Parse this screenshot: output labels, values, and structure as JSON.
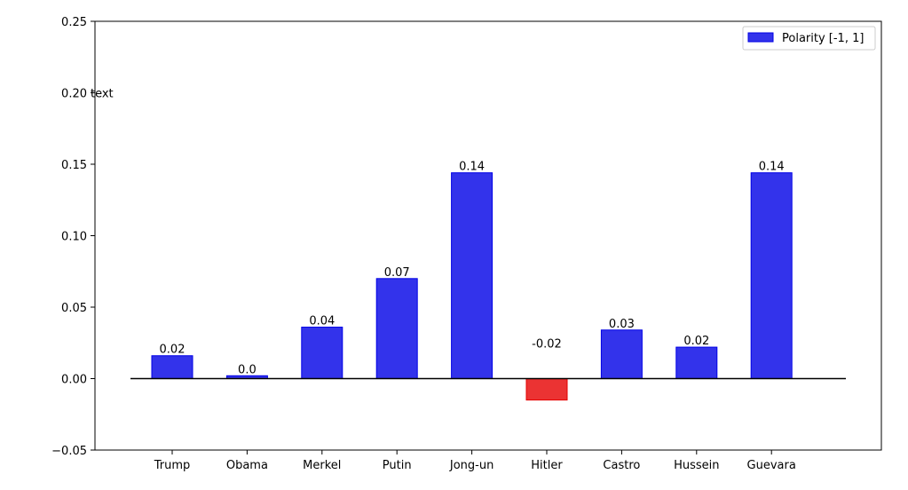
{
  "chart_data": {
    "type": "bar",
    "categories": [
      "Trump",
      "Obama",
      "Merkel",
      "Putin",
      "Jong-un",
      "Hitler",
      "Castro",
      "Hussein",
      "Guevara"
    ],
    "values": [
      0.016,
      0.002,
      0.036,
      0.07,
      0.144,
      -0.015,
      0.034,
      0.022,
      0.144
    ],
    "data_labels": [
      "0.02",
      "0.0",
      "0.04",
      "0.07",
      "0.14",
      "-0.02",
      "0.03",
      "0.02",
      "0.14"
    ],
    "series_name": "Polarity [-1, 1]",
    "ylim": [
      -0.05,
      0.25
    ],
    "yticks": [
      "−0.05",
      "0.00",
      "0.05",
      "0.10",
      "0.15",
      "0.20",
      "0.25"
    ],
    "ytick_values": [
      -0.05,
      0.0,
      0.05,
      0.1,
      0.15,
      0.2,
      0.25
    ],
    "annotation": "text",
    "legend_position": "top-right",
    "grid": false,
    "positive_color": "#0000e6",
    "negative_color": "#e60000",
    "bar_opacity": 0.8,
    "zero_line_color": "#000000"
  }
}
